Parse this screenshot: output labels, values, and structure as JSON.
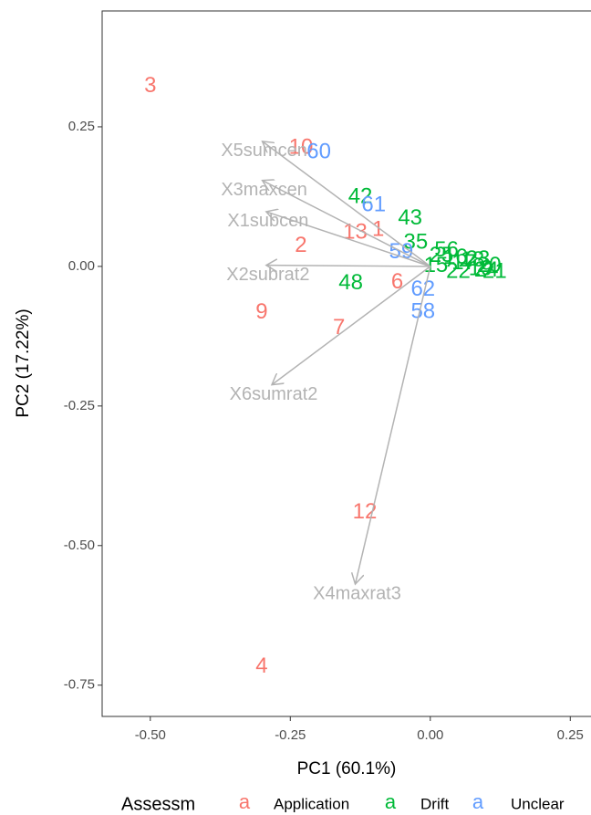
{
  "chart_data": {
    "type": "biplot",
    "x_label": "PC1 (60.1%)",
    "y_label": "PC2 (17.22%)",
    "xlim": [
      -0.586,
      0.287
    ],
    "ylim": [
      -0.806,
      0.4575
    ],
    "xticks": [
      {
        "value": -0.5,
        "label": "-0.50"
      },
      -0.25,
      {
        "value": 0,
        "label": "0.00"
      },
      0.25
    ],
    "yticks": [
      {
        "value": -0.75,
        "label": "-0.75"
      },
      {
        "value": -0.5,
        "label": "-0.50"
      },
      -0.25,
      {
        "value": 0,
        "label": "0.00"
      },
      0.25
    ],
    "grid": false,
    "legend": {
      "title": "Assessm",
      "key": "a",
      "position": "bottom"
    },
    "series": [
      {
        "name": "Application",
        "color": "#F8766D",
        "x": [
          -0.5,
          -0.231,
          -0.134,
          -0.093,
          -0.231,
          -0.301,
          -0.163,
          -0.059,
          -0.117,
          -0.301
        ],
        "y": [
          0.322,
          0.212,
          0.06,
          0.065,
          0.036,
          -0.083,
          -0.111,
          -0.029,
          -0.441,
          -0.717
        ],
        "labels": [
          "3",
          "10",
          "13",
          "1",
          "2",
          "9",
          "7",
          "6",
          "12",
          "4"
        ]
      },
      {
        "name": "Drift",
        "color": "#00BA38",
        "x": [
          -0.125,
          -0.036,
          -0.142,
          -0.026,
          0.029,
          0.01,
          0.045,
          0.06,
          0.075,
          0.09,
          0.105,
          0.115,
          0.05,
          0.085,
          0.1,
          0.02
        ],
        "y": [
          0.124,
          0.085,
          -0.031,
          0.042,
          0.028,
          0.0,
          0.015,
          0.005,
          0.01,
          -0.005,
          0.0,
          -0.01,
          -0.01,
          0.012,
          -0.008,
          0.018
        ],
        "labels": [
          "42",
          "43",
          "48",
          "35",
          "56",
          "15",
          "16",
          "17",
          "18",
          "19",
          "20",
          "21",
          "22",
          "23",
          "24",
          "25"
        ]
      },
      {
        "name": "Unclear",
        "color": "#619CFF",
        "x": [
          -0.199,
          -0.101,
          -0.052,
          -0.013,
          -0.013
        ],
        "y": [
          0.204,
          0.109,
          0.025,
          -0.042,
          -0.082
        ],
        "labels": [
          "60",
          "61",
          "59",
          "62",
          "58"
        ]
      }
    ],
    "loadings": [
      {
        "name": "X5sumcen",
        "x": -0.3,
        "y": 0.224
      },
      {
        "name": "X3maxcen",
        "x": -0.3,
        "y": 0.154
      },
      {
        "name": "X1subcen",
        "x": -0.293,
        "y": 0.098
      },
      {
        "name": "X2subrat2",
        "x": -0.293,
        "y": 0.002
      },
      {
        "name": "X6sumrat2",
        "x": -0.283,
        "y": -0.212
      },
      {
        "name": "X4maxrat3",
        "x": -0.134,
        "y": -0.569
      }
    ],
    "vector_color": "#b3b3b3"
  }
}
